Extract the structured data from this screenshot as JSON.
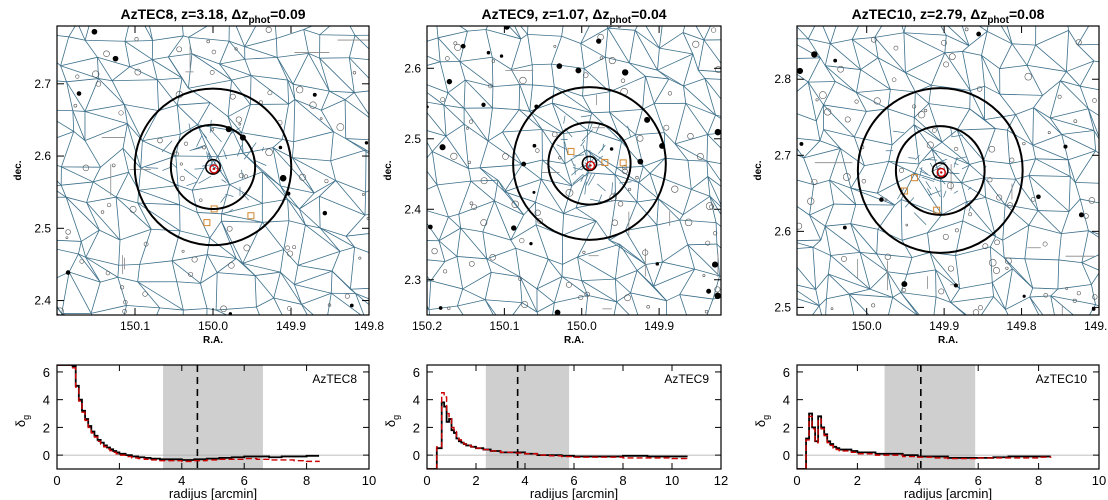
{
  "chart_data": [
    {
      "type": "map",
      "title": {
        "name": "AzTEC8",
        "z": "z=3.18",
        "dz_label": "Δz",
        "dz_sub": "phot",
        "dz_val": "=0.09"
      },
      "xlabel": "R.A.",
      "ylabel": "dec.",
      "xlim": [
        150.2,
        149.8
      ],
      "ylim": [
        2.38,
        2.78
      ],
      "xticks": [
        "150.1",
        "150.0",
        "149.9",
        "149.8"
      ],
      "xtick_values": [
        150.1,
        150.0,
        149.9,
        149.8
      ],
      "yticks": [
        "2.4",
        "2.5",
        "2.6",
        "2.7"
      ],
      "ytick_values": [
        2.4,
        2.5,
        2.6,
        2.7
      ],
      "center": [
        150.0,
        2.585
      ],
      "circle_radii_arcmin": [
        0.6,
        3.5,
        6.5
      ],
      "highlight_color": "#cc0000",
      "cell_color": "#3c6f8a",
      "marker_color": "#d4862e"
    },
    {
      "type": "map",
      "title": {
        "name": "AzTEC9",
        "z": "z=1.07",
        "dz_label": "Δz",
        "dz_sub": "phot",
        "dz_val": "=0.04"
      },
      "xlabel": "R.A.",
      "ylabel": "dec.",
      "xlim": [
        150.2,
        149.82
      ],
      "ylim": [
        2.25,
        2.66
      ],
      "xticks": [
        "150.2",
        "150.1",
        "150.0",
        "149.9"
      ],
      "xtick_values": [
        150.2,
        150.1,
        150.0,
        149.9
      ],
      "yticks": [
        "2.3",
        "2.4",
        "2.5",
        "2.6"
      ],
      "ytick_values": [
        2.3,
        2.4,
        2.5,
        2.6
      ],
      "center": [
        149.99,
        2.465
      ],
      "circle_radii_arcmin": [
        0.6,
        3.5,
        6.5
      ],
      "highlight_color": "#cc0000",
      "cell_color": "#3c6f8a",
      "marker_color": "#d4862e"
    },
    {
      "type": "map",
      "title": {
        "name": "AzTEC10",
        "z": "z=2.79",
        "dz_label": "Δz",
        "dz_sub": "phot",
        "dz_val": "=0.08"
      },
      "xlabel": "R.A.",
      "ylabel": "dec.",
      "xlim": [
        150.09,
        149.7
      ],
      "ylim": [
        2.49,
        2.87
      ],
      "xticks": [
        "150.0",
        "149.9",
        "149.8",
        "149.7"
      ],
      "xtick_values": [
        150.0,
        149.9,
        149.8,
        149.7
      ],
      "yticks": [
        "2.5",
        "2.6",
        "2.7",
        "2.8"
      ],
      "ytick_values": [
        2.5,
        2.6,
        2.7,
        2.8
      ],
      "center": [
        149.905,
        2.68
      ],
      "circle_radii_arcmin": [
        0.6,
        3.5,
        6.5
      ],
      "highlight_color": "#cc0000",
      "cell_color": "#3c6f8a",
      "marker_color": "#d4862e"
    },
    {
      "type": "line",
      "label": "AzTEC8",
      "xlabel": "radijus [arcmin]",
      "ylabel": "δ",
      "ylabel_sub": "g",
      "xlim": [
        0,
        10
      ],
      "ylim": [
        -1,
        6.5
      ],
      "xticks": [
        "0",
        "2",
        "4",
        "6",
        "8",
        "10"
      ],
      "xtick_values": [
        0,
        2,
        4,
        6,
        8,
        10
      ],
      "yticks": [
        "0",
        "2",
        "4",
        "6"
      ],
      "ytick_values": [
        0,
        2,
        4,
        6
      ],
      "shaded_range": [
        3.4,
        6.6
      ],
      "dashed_x": 4.5,
      "series": [
        {
          "color": "#000000",
          "style": "step",
          "x": [
            0.0,
            0.3,
            0.5,
            0.6,
            0.7,
            0.8,
            0.9,
            1.0,
            1.1,
            1.2,
            1.3,
            1.4,
            1.5,
            1.6,
            1.7,
            1.8,
            1.9,
            2.0,
            2.2,
            2.4,
            2.6,
            2.8,
            3.0,
            3.3,
            3.6,
            4.0,
            4.4,
            4.8,
            5.2,
            5.6,
            6.0,
            6.4,
            6.8,
            7.2,
            7.6,
            8.0,
            8.4
          ],
          "y": [
            6.5,
            6.5,
            6.4,
            5.0,
            4.0,
            3.2,
            2.6,
            2.1,
            1.7,
            1.4,
            1.1,
            0.9,
            0.7,
            0.55,
            0.42,
            0.3,
            0.2,
            0.1,
            0.0,
            -0.1,
            -0.15,
            -0.2,
            -0.25,
            -0.3,
            -0.3,
            -0.35,
            -0.3,
            -0.25,
            -0.2,
            -0.15,
            -0.1,
            -0.1,
            -0.15,
            -0.1,
            -0.1,
            -0.05,
            -0.05
          ]
        },
        {
          "color": "#cc0000",
          "style": "dashed",
          "x": [
            0.0,
            0.3,
            0.5,
            0.6,
            0.7,
            0.8,
            0.9,
            1.0,
            1.1,
            1.2,
            1.3,
            1.4,
            1.5,
            1.6,
            1.7,
            1.8,
            1.9,
            2.0,
            2.2,
            2.4,
            2.6,
            2.8,
            3.0,
            3.3,
            3.6,
            4.0,
            4.4,
            4.8,
            5.2,
            5.6,
            6.0,
            6.4,
            6.8,
            7.2,
            7.6,
            8.0,
            8.4
          ],
          "y": [
            6.5,
            6.5,
            6.3,
            4.9,
            3.9,
            3.1,
            2.5,
            2.0,
            1.6,
            1.3,
            1.0,
            0.8,
            0.6,
            0.45,
            0.32,
            0.2,
            0.1,
            0.0,
            -0.1,
            -0.2,
            -0.25,
            -0.3,
            -0.35,
            -0.4,
            -0.4,
            -0.45,
            -0.4,
            -0.35,
            -0.3,
            -0.3,
            -0.25,
            -0.3,
            -0.35,
            -0.35,
            -0.4,
            -0.45,
            -0.5
          ]
        }
      ]
    },
    {
      "type": "line",
      "label": "AzTEC9",
      "xlabel": "radijus [arcmin]",
      "ylabel": "δ",
      "ylabel_sub": "g",
      "xlim": [
        0,
        12
      ],
      "ylim": [
        -1,
        6.5
      ],
      "xticks": [
        "0",
        "2",
        "4",
        "6",
        "8",
        "10",
        "12"
      ],
      "xtick_values": [
        0,
        2,
        4,
        6,
        8,
        10,
        12
      ],
      "yticks": [
        "0",
        "2",
        "4",
        "6"
      ],
      "ytick_values": [
        0,
        2,
        4,
        6
      ],
      "shaded_range": [
        2.4,
        5.8
      ],
      "dashed_x": 3.7,
      "series": [
        {
          "color": "#000000",
          "style": "step",
          "x": [
            0.0,
            0.4,
            0.6,
            0.7,
            0.8,
            0.9,
            1.0,
            1.1,
            1.2,
            1.3,
            1.4,
            1.5,
            1.6,
            1.8,
            2.0,
            2.3,
            2.6,
            3.0,
            3.5,
            4.0,
            4.5,
            5.0,
            5.5,
            6.0,
            7.0,
            8.0,
            9.0,
            10.0,
            10.6
          ],
          "y": [
            -1.0,
            0.5,
            3.8,
            3.5,
            2.4,
            2.6,
            1.8,
            1.6,
            1.2,
            1.0,
            0.9,
            0.8,
            0.7,
            0.6,
            0.5,
            0.4,
            0.3,
            0.2,
            0.2,
            0.1,
            0.0,
            0.0,
            -0.05,
            -0.1,
            -0.1,
            -0.05,
            -0.1,
            -0.1,
            -0.15
          ]
        },
        {
          "color": "#cc0000",
          "style": "dashed",
          "x": [
            0.0,
            0.4,
            0.6,
            0.7,
            0.8,
            0.9,
            1.0,
            1.1,
            1.2,
            1.3,
            1.4,
            1.5,
            1.6,
            1.8,
            2.0,
            2.3,
            2.6,
            3.0,
            3.5,
            4.0,
            4.5,
            5.0,
            5.5,
            6.0,
            7.0,
            8.0,
            9.0,
            10.0,
            10.6
          ],
          "y": [
            -1.0,
            0.6,
            4.5,
            4.2,
            3.0,
            2.7,
            2.0,
            1.7,
            1.3,
            1.1,
            0.9,
            0.8,
            0.7,
            0.6,
            0.5,
            0.4,
            0.3,
            0.2,
            0.15,
            0.1,
            0.0,
            -0.05,
            -0.1,
            -0.15,
            -0.15,
            -0.2,
            -0.2,
            -0.25,
            -0.3
          ]
        }
      ]
    },
    {
      "type": "line",
      "label": "AzTEC10",
      "xlabel": "radijus [arcmin]",
      "ylabel": "δ",
      "ylabel_sub": "g",
      "xlim": [
        0,
        10
      ],
      "ylim": [
        -1,
        6.5
      ],
      "xticks": [
        "0",
        "2",
        "4",
        "6",
        "8",
        "10"
      ],
      "xtick_values": [
        0,
        2,
        4,
        6,
        8,
        10
      ],
      "yticks": [
        "0",
        "2",
        "4",
        "6"
      ],
      "ytick_values": [
        0,
        2,
        4,
        6
      ],
      "shaded_range": [
        2.9,
        5.9
      ],
      "dashed_x": 4.1,
      "series": [
        {
          "color": "#000000",
          "style": "step",
          "x": [
            0.0,
            0.3,
            0.4,
            0.5,
            0.6,
            0.7,
            0.8,
            0.9,
            1.0,
            1.1,
            1.2,
            1.3,
            1.4,
            1.6,
            1.8,
            2.0,
            2.3,
            2.6,
            3.0,
            3.5,
            4.0,
            4.5,
            5.0,
            5.5,
            6.0,
            6.5,
            7.0,
            7.5,
            8.0,
            8.4
          ],
          "y": [
            -1.0,
            1.2,
            3.0,
            2.0,
            1.0,
            2.8,
            2.0,
            1.5,
            1.0,
            0.8,
            0.6,
            0.5,
            0.4,
            0.4,
            0.3,
            0.2,
            0.2,
            0.1,
            0.1,
            0.0,
            -0.1,
            -0.1,
            -0.2,
            -0.2,
            -0.2,
            -0.15,
            -0.1,
            -0.1,
            -0.1,
            -0.1
          ]
        },
        {
          "color": "#cc0000",
          "style": "dashed",
          "x": [
            0.0,
            0.3,
            0.4,
            0.5,
            0.6,
            0.7,
            0.8,
            0.9,
            1.0,
            1.1,
            1.2,
            1.3,
            1.4,
            1.6,
            1.8,
            2.0,
            2.3,
            2.6,
            3.0,
            3.5,
            4.0,
            4.5,
            5.0,
            5.5,
            6.0,
            6.5,
            7.0,
            7.5,
            8.0,
            8.4
          ],
          "y": [
            -1.0,
            1.1,
            2.8,
            1.9,
            0.9,
            2.6,
            1.9,
            1.4,
            0.9,
            0.7,
            0.5,
            0.4,
            0.3,
            0.3,
            0.2,
            0.1,
            0.1,
            0.0,
            0.0,
            -0.1,
            -0.15,
            -0.2,
            -0.25,
            -0.25,
            -0.2,
            -0.2,
            -0.2,
            -0.2,
            -0.15,
            -0.2
          ]
        }
      ]
    }
  ]
}
